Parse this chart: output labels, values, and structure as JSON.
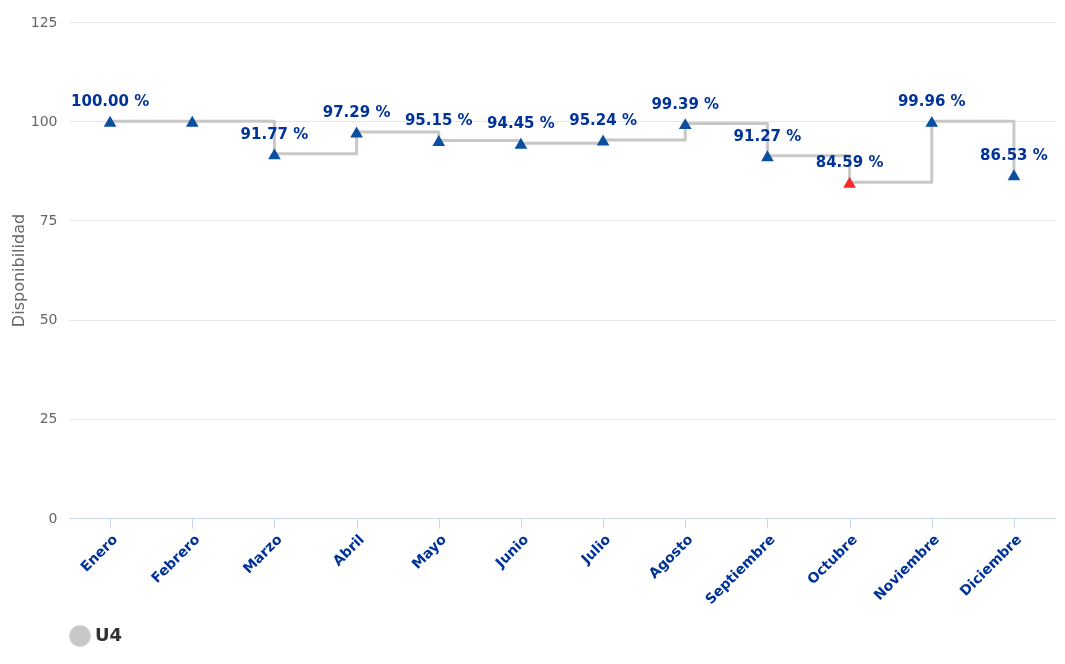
{
  "chart_data": {
    "type": "step",
    "ylabel": "Disponibilidad",
    "categories": [
      "Enero",
      "Febrero",
      "Marzo",
      "Abril",
      "Mayo",
      "Junio",
      "Julio",
      "Agosto",
      "Septiembre",
      "Octubre",
      "Noviembre",
      "Diciembre"
    ],
    "series": [
      {
        "name": "U4",
        "color": "#c8c8c8",
        "values": [
          100,
          100,
          91.77,
          97.29,
          95.15,
          94.45,
          95.24,
          99.39,
          91.27,
          84.59,
          99.96,
          86.53
        ],
        "colors": [
          "#0b4fa0",
          "#0b4fa0",
          "#0b4fa0",
          "#0b4fa0",
          "#0b4fa0",
          "#0b4fa0",
          "#0b4fa0",
          "#0b4fa0",
          "#0b4fa0",
          "#f22b2b",
          "#0b4fa0",
          "#0b4fa0"
        ],
        "value_labels": [
          "100.00 %",
          null,
          "91.77 %",
          "97.29 %",
          "95.15 %",
          "94.45 %",
          "95.24 %",
          "99.39 %",
          "91.27 %",
          "84.59 %",
          "99.96 %",
          "86.53 %"
        ]
      }
    ],
    "ylim": [
      0,
      125
    ],
    "yticks": [
      0,
      25,
      50,
      75,
      100,
      125
    ],
    "grid": "y",
    "legend": "bottom",
    "marker": "triangle",
    "line_style": "solid"
  }
}
